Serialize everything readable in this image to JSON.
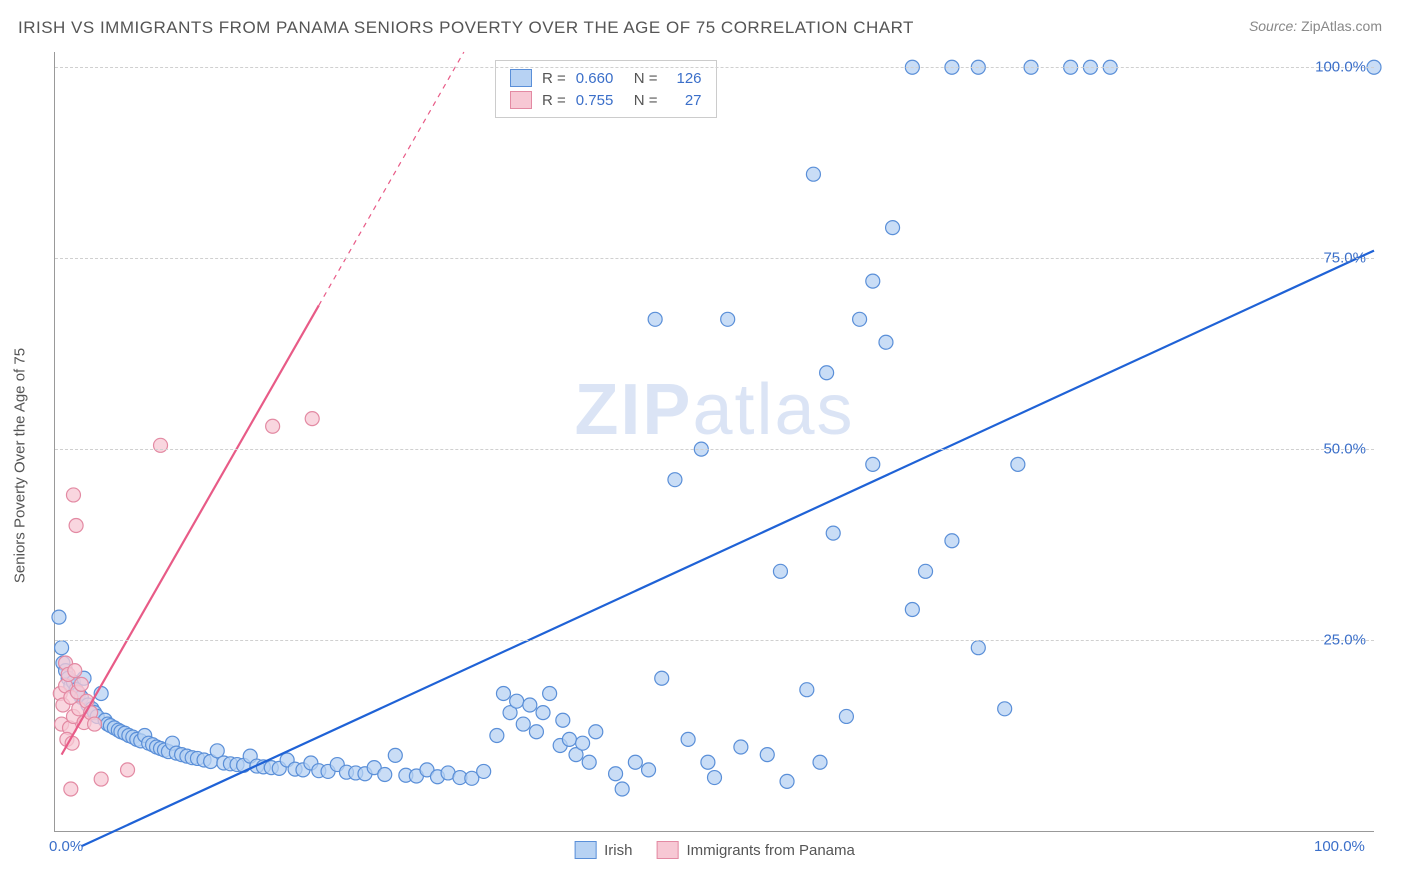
{
  "title": "IRISH VS IMMIGRANTS FROM PANAMA SENIORS POVERTY OVER THE AGE OF 75 CORRELATION CHART",
  "source_prefix": "Source: ",
  "source_name": "ZipAtlas.com",
  "y_axis_label": "Seniors Poverty Over the Age of 75",
  "watermark_bold": "ZIP",
  "watermark_rest": "atlas",
  "chart": {
    "type": "scatter-with-regression",
    "xlim": [
      0,
      100
    ],
    "ylim": [
      0,
      102
    ],
    "x_ticks": [
      {
        "value": 0,
        "label": "0.0%"
      },
      {
        "value": 100,
        "label": "100.0%"
      }
    ],
    "y_ticks": [
      {
        "value": 25,
        "label": "25.0%"
      },
      {
        "value": 50,
        "label": "50.0%"
      },
      {
        "value": 75,
        "label": "75.0%"
      },
      {
        "value": 100,
        "label": "100.0%"
      }
    ],
    "grid_color": "#d0d0d0",
    "background_color": "#ffffff",
    "marker_radius": 7,
    "marker_stroke_width": 1.2,
    "series": [
      {
        "name": "Irish",
        "fill": "#b7d2f3",
        "stroke": "#5a8fd8",
        "line_color": "#1f62d6",
        "line_width": 2.2,
        "R": "0.660",
        "N": "126",
        "regression": {
          "x1": 2,
          "y1": -2,
          "x2": 100,
          "y2": 76,
          "dashed_from_x": null
        },
        "points": [
          [
            0.3,
            28
          ],
          [
            0.5,
            24
          ],
          [
            0.6,
            22
          ],
          [
            0.8,
            21
          ],
          [
            1.0,
            20
          ],
          [
            1.2,
            19
          ],
          [
            1.4,
            19.5
          ],
          [
            1.6,
            18.5
          ],
          [
            1.8,
            18
          ],
          [
            2.0,
            17.5
          ],
          [
            2.2,
            20
          ],
          [
            2.5,
            16.5
          ],
          [
            2.8,
            16
          ],
          [
            3.0,
            15.5
          ],
          [
            3.2,
            15
          ],
          [
            3.5,
            18
          ],
          [
            3.8,
            14.5
          ],
          [
            4.0,
            14
          ],
          [
            4.2,
            13.8
          ],
          [
            4.5,
            13.5
          ],
          [
            4.8,
            13.2
          ],
          [
            5.0,
            13
          ],
          [
            5.3,
            12.8
          ],
          [
            5.6,
            12.5
          ],
          [
            5.9,
            12.3
          ],
          [
            6.2,
            12
          ],
          [
            6.5,
            11.8
          ],
          [
            6.8,
            12.5
          ],
          [
            7.1,
            11.5
          ],
          [
            7.4,
            11.3
          ],
          [
            7.7,
            11
          ],
          [
            8.0,
            10.8
          ],
          [
            8.3,
            10.6
          ],
          [
            8.6,
            10.4
          ],
          [
            8.9,
            11.5
          ],
          [
            9.2,
            10.2
          ],
          [
            9.6,
            10
          ],
          [
            10.0,
            9.8
          ],
          [
            10.4,
            9.6
          ],
          [
            10.8,
            9.5
          ],
          [
            11.3,
            9.3
          ],
          [
            11.8,
            9.1
          ],
          [
            12.3,
            10.5
          ],
          [
            12.8,
            8.9
          ],
          [
            13.3,
            8.8
          ],
          [
            13.8,
            8.7
          ],
          [
            14.3,
            8.6
          ],
          [
            14.8,
            9.8
          ],
          [
            15.3,
            8.5
          ],
          [
            15.8,
            8.4
          ],
          [
            16.4,
            8.3
          ],
          [
            17.0,
            8.2
          ],
          [
            17.6,
            9.3
          ],
          [
            18.2,
            8.1
          ],
          [
            18.8,
            8.0
          ],
          [
            19.4,
            8.9
          ],
          [
            20.0,
            7.9
          ],
          [
            20.7,
            7.8
          ],
          [
            21.4,
            8.7
          ],
          [
            22.1,
            7.7
          ],
          [
            22.8,
            7.6
          ],
          [
            23.5,
            7.5
          ],
          [
            24.2,
            8.3
          ],
          [
            25.0,
            7.4
          ],
          [
            25.8,
            9.9
          ],
          [
            26.6,
            7.3
          ],
          [
            27.4,
            7.2
          ],
          [
            28.2,
            8.0
          ],
          [
            29.0,
            7.1
          ],
          [
            29.8,
            7.6
          ],
          [
            30.7,
            7.0
          ],
          [
            31.6,
            6.9
          ],
          [
            32.5,
            7.8
          ],
          [
            33.5,
            12.5
          ],
          [
            34,
            18
          ],
          [
            34.5,
            15.5
          ],
          [
            35,
            17
          ],
          [
            35.5,
            14
          ],
          [
            36,
            16.5
          ],
          [
            36.5,
            13
          ],
          [
            37,
            15.5
          ],
          [
            37.5,
            18.0
          ],
          [
            38.3,
            11.2
          ],
          [
            38.5,
            14.5
          ],
          [
            39,
            12.0
          ],
          [
            39.5,
            10.0
          ],
          [
            40,
            11.5
          ],
          [
            40.5,
            9.0
          ],
          [
            41,
            13.0
          ],
          [
            42.5,
            7.5
          ],
          [
            43,
            5.5
          ],
          [
            44,
            9.0
          ],
          [
            45,
            8.0
          ],
          [
            45.5,
            67
          ],
          [
            46,
            20
          ],
          [
            47,
            46
          ],
          [
            48,
            12
          ],
          [
            49,
            50
          ],
          [
            49.5,
            9.0
          ],
          [
            50,
            7.0
          ],
          [
            51,
            67
          ],
          [
            52,
            11
          ],
          [
            54,
            10
          ],
          [
            55,
            34
          ],
          [
            55.5,
            6.5
          ],
          [
            57,
            18.5
          ],
          [
            57.5,
            86
          ],
          [
            58,
            9.0
          ],
          [
            58.5,
            60
          ],
          [
            59,
            39
          ],
          [
            60,
            15
          ],
          [
            61,
            67
          ],
          [
            62,
            72
          ],
          [
            62,
            48
          ],
          [
            63,
            64
          ],
          [
            63.5,
            79
          ],
          [
            65,
            100
          ],
          [
            65,
            29
          ],
          [
            66,
            34
          ],
          [
            68,
            100
          ],
          [
            68,
            38
          ],
          [
            70,
            100
          ],
          [
            70,
            24
          ],
          [
            72,
            16
          ],
          [
            73,
            48
          ],
          [
            74,
            100
          ],
          [
            77,
            100
          ],
          [
            78.5,
            100
          ],
          [
            80,
            100
          ],
          [
            100,
            100
          ]
        ]
      },
      {
        "name": "Immigrants from Panama",
        "fill": "#f7c8d4",
        "stroke": "#e38aa3",
        "line_color": "#e85b87",
        "line_width": 2.2,
        "R": "0.755",
        "N": "27",
        "regression": {
          "x1": 0.5,
          "y1": 10,
          "x2": 31,
          "y2": 102,
          "dashed_from_x": 20
        },
        "points": [
          [
            0.4,
            18
          ],
          [
            0.5,
            14
          ],
          [
            0.6,
            16.5
          ],
          [
            0.8,
            22
          ],
          [
            0.8,
            19
          ],
          [
            1.0,
            20.5
          ],
          [
            1.1,
            13.5
          ],
          [
            1.2,
            17.5
          ],
          [
            1.4,
            15
          ],
          [
            1.5,
            21
          ],
          [
            1.7,
            18.2
          ],
          [
            1.8,
            16
          ],
          [
            2.0,
            19.2
          ],
          [
            2.2,
            14.2
          ],
          [
            1.4,
            44
          ],
          [
            1.6,
            40
          ],
          [
            0.9,
            12
          ],
          [
            1.3,
            11.5
          ],
          [
            2.4,
            17
          ],
          [
            2.7,
            15.5
          ],
          [
            3.0,
            14
          ],
          [
            1.2,
            5.5
          ],
          [
            3.5,
            6.8
          ],
          [
            5.5,
            8
          ],
          [
            8,
            50.5
          ],
          [
            16.5,
            53
          ],
          [
            19.5,
            54
          ]
        ]
      }
    ]
  },
  "bottom_legend": [
    {
      "key": "Irish",
      "swatch_fill": "#b7d2f3",
      "swatch_stroke": "#5a8fd8"
    },
    {
      "key": "Immigrants from Panama",
      "swatch_fill": "#f7c8d4",
      "swatch_stroke": "#e38aa3"
    }
  ]
}
